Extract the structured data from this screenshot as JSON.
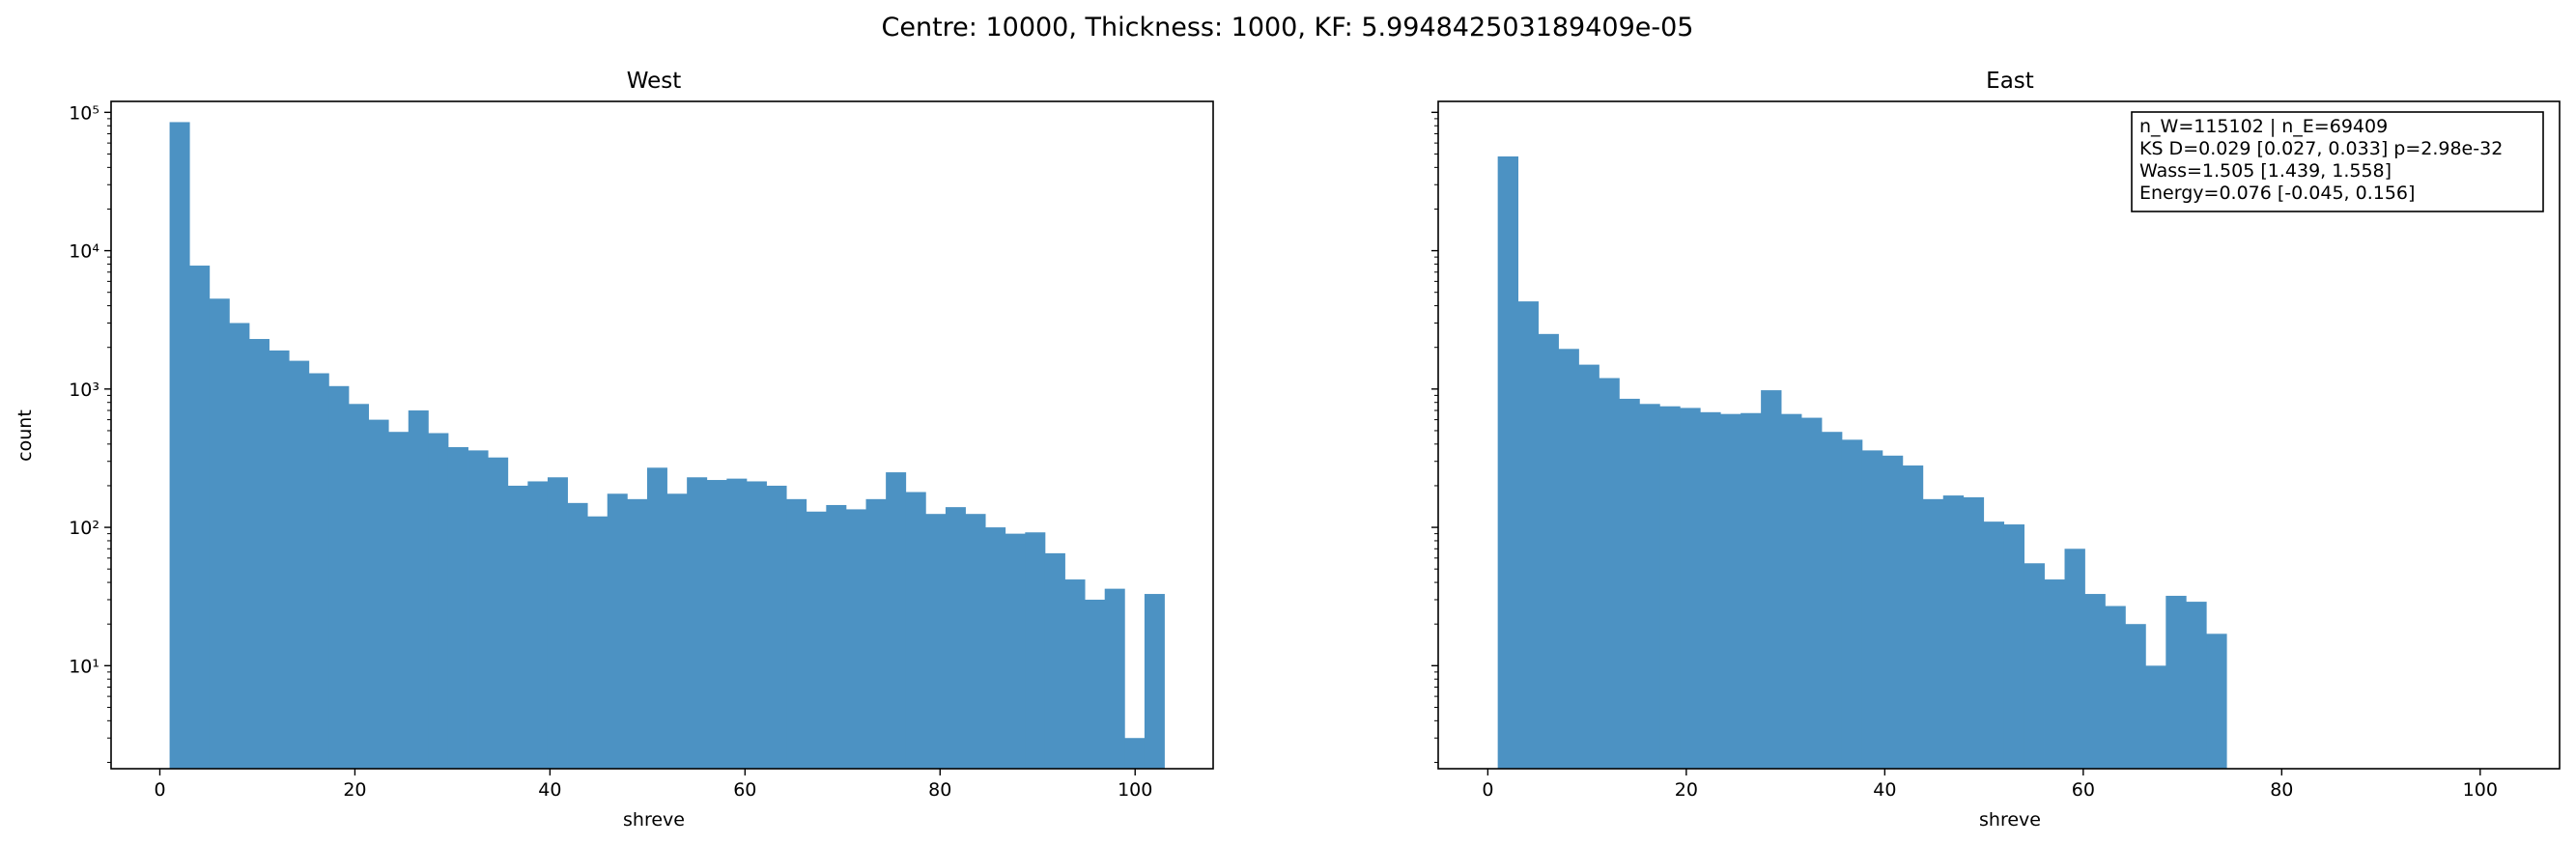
{
  "suptitle": "Centre: 10000, Thickness: 1000, KF: 5.994842503189409e-05",
  "chart_data": [
    {
      "type": "bar",
      "title": "West",
      "xlabel": "shreve",
      "ylabel": "count",
      "yscale": "log",
      "ylim": [
        1.8,
        120000
      ],
      "xlim": [
        -5,
        108
      ],
      "color": "#4c92c3",
      "x_ticks": [
        0,
        20,
        40,
        60,
        80,
        100
      ],
      "x_tick_labels": [
        "0",
        "20",
        "40",
        "60",
        "80",
        "100"
      ],
      "y_ticks": [
        10,
        100,
        1000,
        10000,
        100000
      ],
      "y_tick_labels": [
        "10¹",
        "10²",
        "10³",
        "10⁴",
        "10⁵"
      ],
      "bin_edges": [
        1,
        3.04,
        5.08,
        7.12,
        9.16,
        11.2,
        13.24,
        15.28,
        17.32,
        19.36,
        21.4,
        23.44,
        25.48,
        27.52,
        29.56,
        31.6,
        33.64,
        35.68,
        37.72,
        39.76,
        41.8,
        43.84,
        45.88,
        47.92,
        49.96,
        52,
        54.04,
        56.08,
        58.12,
        60.16,
        62.2,
        64.24,
        66.28,
        68.32,
        70.36,
        72.4,
        74.44,
        76.48,
        78.52,
        80.56,
        82.6,
        84.64,
        86.68,
        88.72,
        90.76,
        92.8,
        94.84,
        96.88,
        98.92,
        100.96,
        103
      ],
      "counts": [
        85000,
        7800,
        4500,
        3000,
        2300,
        1900,
        1600,
        1300,
        1050,
        780,
        600,
        490,
        700,
        480,
        380,
        360,
        320,
        200,
        215,
        230,
        150,
        120,
        175,
        160,
        270,
        175,
        230,
        220,
        225,
        215,
        200,
        160,
        130,
        145,
        135,
        160,
        250,
        180,
        125,
        140,
        125,
        100,
        90,
        92,
        65,
        42,
        30,
        36,
        3,
        33
      ]
    },
    {
      "type": "bar",
      "title": "East",
      "xlabel": "shreve",
      "ylabel": "",
      "yscale": "log",
      "ylim": [
        1.8,
        120000
      ],
      "xlim": [
        -5,
        108
      ],
      "color": "#4c92c3",
      "x_ticks": [
        0,
        20,
        40,
        60,
        80,
        100
      ],
      "x_tick_labels": [
        "0",
        "20",
        "40",
        "60",
        "80",
        "100"
      ],
      "y_ticks": [
        10,
        100,
        1000,
        10000,
        100000
      ],
      "y_tick_labels": [
        "",
        "",
        "",
        "",
        ""
      ],
      "bin_edges": [
        1,
        3.04,
        5.08,
        7.12,
        9.16,
        11.2,
        13.24,
        15.28,
        17.32,
        19.36,
        21.4,
        23.44,
        25.48,
        27.52,
        29.56,
        31.6,
        33.64,
        35.68,
        37.72,
        39.76,
        41.8,
        43.84,
        45.88,
        47.92,
        49.96,
        52,
        54.04,
        56.08,
        58.12,
        60.16,
        62.2,
        64.24,
        66.28,
        68.32,
        70.36,
        72.4,
        74.44
      ],
      "counts": [
        48000,
        4300,
        2500,
        1950,
        1500,
        1200,
        850,
        780,
        750,
        730,
        680,
        660,
        670,
        980,
        660,
        620,
        490,
        430,
        360,
        330,
        280,
        160,
        170,
        165,
        110,
        105,
        55,
        42,
        70,
        33,
        27,
        20,
        10,
        32,
        29,
        17
      ],
      "annotation": {
        "placement": "top-right",
        "lines": [
          "n_W=115102 | n_E=69409",
          "KS D=0.029 [0.027, 0.033]  p=2.98e-32",
          "Wass=1.505 [1.439, 1.558]",
          "Energy=0.076 [-0.045, 0.156]"
        ]
      }
    }
  ]
}
